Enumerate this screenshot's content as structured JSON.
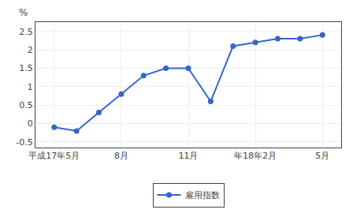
{
  "chart_data": {
    "type": "line",
    "y_label": "%",
    "categories": [
      "平成17年5月",
      null,
      null,
      "8月",
      null,
      null,
      "11月",
      null,
      null,
      "年18年2月",
      null,
      null,
      "5月"
    ],
    "series": [
      {
        "name": "雇用指数",
        "color": "#3366CC",
        "marker": "circle",
        "line_style": "solid",
        "values": [
          -0.1,
          -0.2,
          0.3,
          0.8,
          1.3,
          1.5,
          1.5,
          0.6,
          2.1,
          2.2,
          2.3,
          2.3,
          2.4
        ]
      }
    ],
    "ylim": [
      -0.65,
      2.75
    ],
    "yticks": [
      -0.5,
      0,
      0.5,
      1,
      1.5,
      2,
      2.5
    ],
    "grid": true,
    "legend": "bottom"
  }
}
